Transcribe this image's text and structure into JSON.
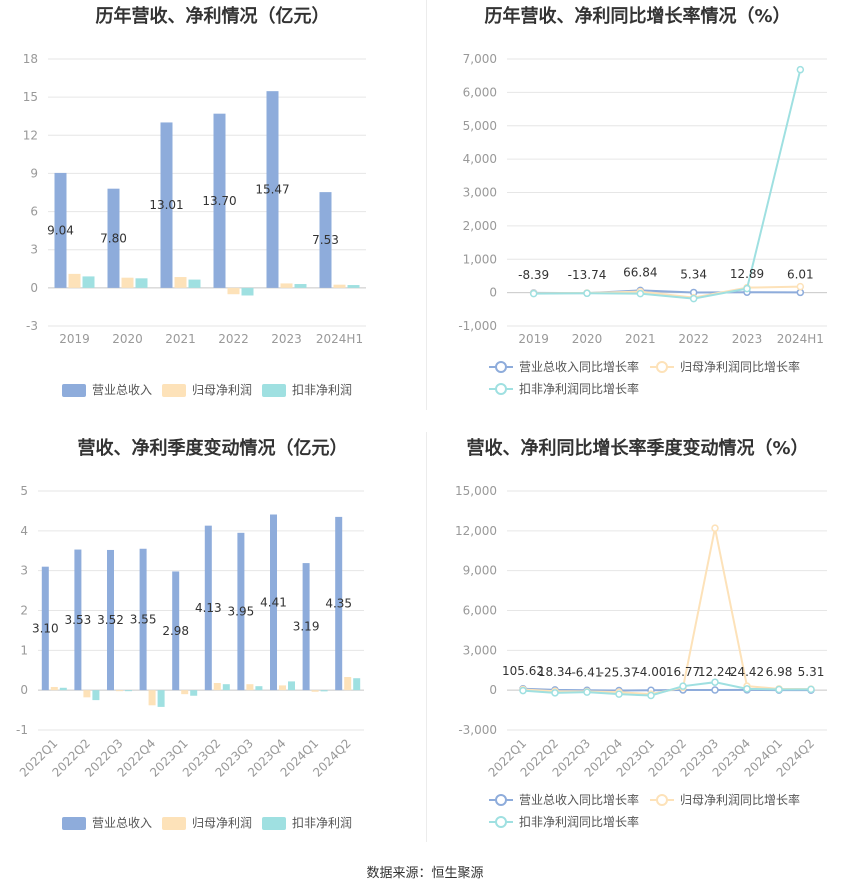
{
  "source": "数据来源：恒生聚源",
  "colors": {
    "revenue": "#8eacdb",
    "net_profit": "#fde2b9",
    "deducted": "#9fe0e1",
    "rev_growth": "#8eacdb",
    "np_growth": "#fde2b9",
    "ded_growth": "#9fe0e1"
  },
  "chart_data": [
    {
      "type": "bar",
      "title": "历年营收、净利情况（亿元）",
      "categories": [
        "2019",
        "2020",
        "2021",
        "2022",
        "2023",
        "2024H1"
      ],
      "ylim": [
        -3,
        18
      ],
      "yticks": [
        -3,
        0,
        3,
        6,
        9,
        12,
        15,
        18
      ],
      "series": [
        {
          "name": "营业总收入",
          "values": [
            9.04,
            7.8,
            13.01,
            13.7,
            15.47,
            7.53
          ]
        },
        {
          "name": "归母净利润",
          "values": [
            1.1,
            0.8,
            0.85,
            -0.5,
            0.35,
            0.25
          ]
        },
        {
          "name": "扣非净利润",
          "values": [
            0.9,
            0.75,
            0.65,
            -0.6,
            0.3,
            0.22
          ]
        }
      ],
      "labels": [
        "9.04",
        "7.80",
        "13.01",
        "13.70",
        "15.47",
        "7.53"
      ],
      "grid": true,
      "legend": "bottom"
    },
    {
      "type": "line",
      "title": "历年营收、净利同比增长率情况（%）",
      "categories": [
        "2019",
        "2020",
        "2021",
        "2022",
        "2023",
        "2024H1"
      ],
      "ylim": [
        -1000,
        7000
      ],
      "yticks": [
        -1000,
        0,
        1000,
        2000,
        3000,
        4000,
        5000,
        6000,
        7000
      ],
      "ytick_labels": [
        "-1,000",
        "0",
        "1,000",
        "2,000",
        "3,000",
        "4,000",
        "5,000",
        "6,000",
        "7,000"
      ],
      "series": [
        {
          "name": "营业总收入同比增长率",
          "values": [
            -8.39,
            -13.74,
            66.84,
            5.34,
            12.89,
            6.01
          ]
        },
        {
          "name": "归母净利润同比增长率",
          "values": [
            -20,
            -10,
            30,
            -150,
            150,
            180
          ]
        },
        {
          "name": "扣非净利润同比增长率",
          "values": [
            -30,
            -20,
            -30,
            -180,
            120,
            6680
          ]
        }
      ],
      "labels": [
        "-8.39",
        "-13.74",
        "66.84",
        "5.34",
        "12.89",
        "6.01"
      ],
      "grid": true,
      "legend": "bottom"
    },
    {
      "type": "bar",
      "title": "营收、净利季度变动情况（亿元）",
      "categories": [
        "2022Q1",
        "2022Q2",
        "2022Q3",
        "2022Q4",
        "2023Q1",
        "2023Q2",
        "2023Q3",
        "2023Q4",
        "2024Q1",
        "2024Q2"
      ],
      "ylim": [
        -1,
        5
      ],
      "yticks": [
        -1,
        0,
        1,
        2,
        3,
        4,
        5
      ],
      "series": [
        {
          "name": "营业总收入",
          "values": [
            3.1,
            3.53,
            3.52,
            3.55,
            2.98,
            4.13,
            3.95,
            4.41,
            3.19,
            4.35
          ]
        },
        {
          "name": "归母净利润",
          "values": [
            0.08,
            -0.18,
            -0.02,
            -0.38,
            -0.1,
            0.18,
            0.15,
            0.12,
            -0.04,
            0.33
          ]
        },
        {
          "name": "扣非净利润",
          "values": [
            0.06,
            -0.25,
            -0.02,
            -0.42,
            -0.14,
            0.15,
            0.1,
            0.22,
            -0.03,
            0.3
          ]
        }
      ],
      "labels": [
        "3.10",
        "3.53",
        "3.52",
        "3.55",
        "2.98",
        "4.13",
        "3.95",
        "4.41",
        "3.19",
        "4.35"
      ],
      "grid": true,
      "legend": "bottom"
    },
    {
      "type": "line",
      "title": "营收、净利同比增长率季度变动情况（%）",
      "categories": [
        "2022Q1",
        "2022Q2",
        "2022Q3",
        "2022Q4",
        "2023Q1",
        "2023Q2",
        "2023Q3",
        "2023Q4",
        "2024Q1",
        "2024Q2"
      ],
      "ylim": [
        -3000,
        15000
      ],
      "yticks": [
        -3000,
        0,
        3000,
        6000,
        9000,
        12000,
        15000
      ],
      "ytick_labels": [
        "-3,000",
        "0",
        "3,000",
        "6,000",
        "9,000",
        "12,000",
        "15,000"
      ],
      "series": [
        {
          "name": "营业总收入同比增长率",
          "values": [
            105.62,
            18.34,
            -6.41,
            -25.37,
            -4.0,
            16.77,
            12.24,
            24.42,
            6.98,
            5.31
          ]
        },
        {
          "name": "归母净利润同比增长率",
          "values": [
            50,
            -80,
            -100,
            -150,
            -300,
            200,
            12200,
            300,
            100,
            80
          ]
        },
        {
          "name": "扣非净利润同比增长率",
          "values": [
            -30,
            -200,
            -150,
            -300,
            -400,
            300,
            600,
            100,
            50,
            60
          ]
        }
      ],
      "labels": [
        "105.62",
        "18.34",
        "-6.41",
        "-25.37",
        "-4.00",
        "16.77",
        "12.24",
        "24.42",
        "6.98",
        "5.31"
      ],
      "grid": true,
      "legend": "bottom"
    }
  ]
}
